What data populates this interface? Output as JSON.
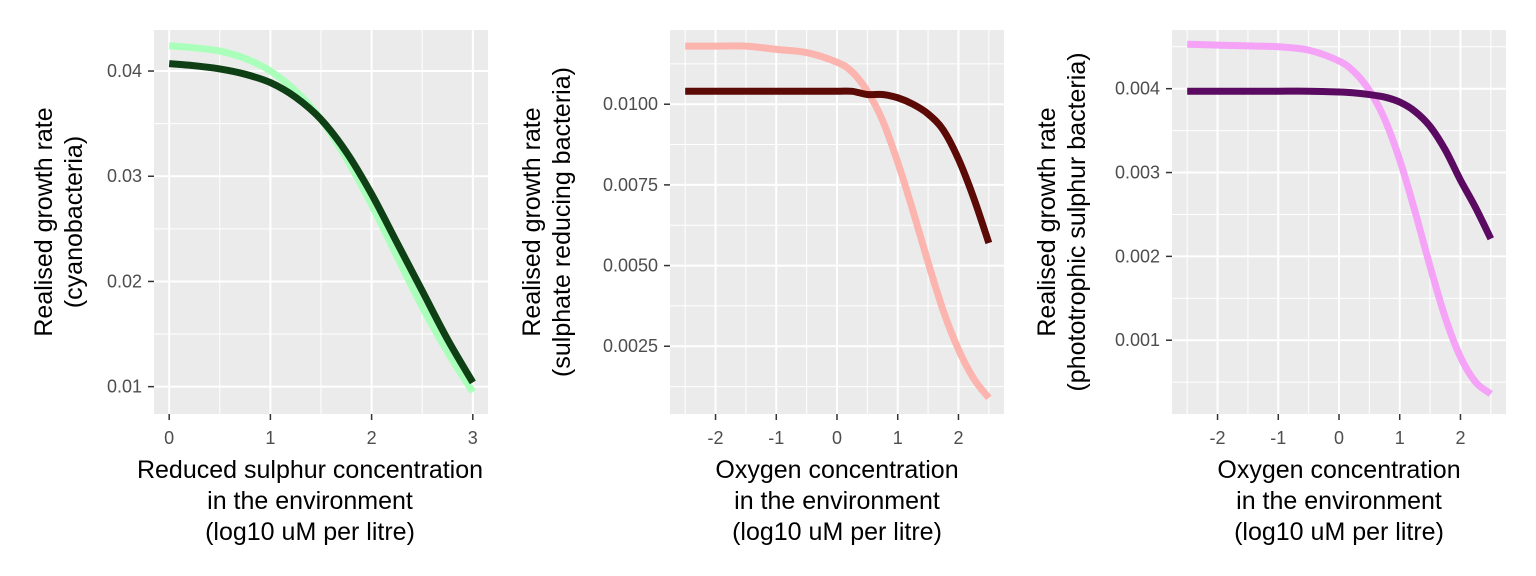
{
  "chart_data": [
    {
      "type": "line",
      "title": "",
      "xlabel": [
        "Reduced sulphur concentration",
        "in the environment",
        "(log10 uM per litre)"
      ],
      "ylabel": [
        "Realised growth rate",
        "(cyanobacteria)"
      ],
      "xlim": [
        -0.15,
        3.15
      ],
      "ylim": [
        0.0074,
        0.0439
      ],
      "xticks": [
        0,
        1,
        2,
        3
      ],
      "xtick_labels": [
        "0",
        "1",
        "2",
        "3"
      ],
      "yticks": [
        0.01,
        0.02,
        0.03,
        0.04
      ],
      "ytick_labels": [
        "0.01",
        "0.02",
        "0.03",
        "0.04"
      ],
      "grid": true,
      "legend": "none",
      "x": [
        0,
        0.25,
        0.5,
        0.75,
        1.0,
        1.25,
        1.5,
        1.75,
        2.0,
        2.25,
        2.5,
        2.75,
        3.0
      ],
      "series": [
        {
          "color": "#aaffbb",
          "values": [
            0.0424,
            0.0422,
            0.0419,
            0.0412,
            0.04,
            0.0381,
            0.0354,
            0.0317,
            0.0273,
            0.0224,
            0.0176,
            0.0133,
            0.0095
          ]
        },
        {
          "color": "#0f3f14",
          "values": [
            0.0407,
            0.0405,
            0.0402,
            0.0397,
            0.0389,
            0.0375,
            0.0354,
            0.0323,
            0.0283,
            0.0237,
            0.0191,
            0.0145,
            0.0104
          ]
        }
      ]
    },
    {
      "type": "line",
      "title": "",
      "xlabel": [
        "Oxygen concentration",
        "in the environment",
        "(log10 uM per litre)"
      ],
      "ylabel": [
        "Realised growth rate",
        "(sulphate reducing bacteria)"
      ],
      "xlim": [
        -2.75,
        2.75
      ],
      "ylim": [
        0.0004,
        0.0123
      ],
      "xticks": [
        -2,
        -1,
        0,
        1,
        2
      ],
      "xtick_labels": [
        "-2",
        "-1",
        "0",
        "1",
        "2"
      ],
      "yticks": [
        0.0025,
        0.005,
        0.0075,
        0.01
      ],
      "ytick_labels": [
        "0.0025",
        "0.0050",
        "0.0075",
        "0.0100"
      ],
      "grid": true,
      "legend": "none",
      "x": [
        -2.5,
        -2.0,
        -1.5,
        -1.0,
        -0.5,
        0.0,
        0.25,
        0.5,
        0.75,
        1.0,
        1.25,
        1.5,
        1.75,
        2.0,
        2.25,
        2.5
      ],
      "series": [
        {
          "color": "#fbb4ae",
          "values": [
            0.0118,
            0.0118,
            0.0118,
            0.0117,
            0.0116,
            0.0113,
            0.011,
            0.0104,
            0.0095,
            0.0082,
            0.0067,
            0.0051,
            0.0036,
            0.0024,
            0.0015,
            0.0009
          ]
        },
        {
          "color": "#5c0a05",
          "values": [
            0.0104,
            0.0104,
            0.0104,
            0.0104,
            0.0104,
            0.0104,
            0.0104,
            0.0103,
            0.0103,
            0.0102,
            0.01,
            0.0097,
            0.0092,
            0.0083,
            0.0071,
            0.0057
          ]
        }
      ]
    },
    {
      "type": "line",
      "title": "",
      "xlabel": [
        "Oxygen concentration",
        "in the environment",
        "(log10 uM per litre)"
      ],
      "ylabel": [
        "Realised growth rate",
        "(phototrophic sulphur bacteria)"
      ],
      "xlim": [
        -2.75,
        2.75
      ],
      "ylim": [
        0.00012,
        0.0047
      ],
      "xticks": [
        -2,
        -1,
        0,
        1,
        2
      ],
      "xtick_labels": [
        "-2",
        "-1",
        "0",
        "1",
        "2"
      ],
      "yticks": [
        0.001,
        0.002,
        0.003,
        0.004
      ],
      "ytick_labels": [
        "0.001",
        "0.002",
        "0.003",
        "0.004"
      ],
      "grid": true,
      "legend": "none",
      "x": [
        -2.5,
        -2.0,
        -1.5,
        -1.0,
        -0.5,
        0.0,
        0.25,
        0.5,
        0.75,
        1.0,
        1.25,
        1.5,
        1.75,
        2.0,
        2.25,
        2.5
      ],
      "series": [
        {
          "color": "#f4a3f7",
          "values": [
            0.00453,
            0.00452,
            0.00451,
            0.0045,
            0.00446,
            0.00433,
            0.0042,
            0.00398,
            0.00364,
            0.00315,
            0.00254,
            0.00188,
            0.00127,
            0.0008,
            0.0005,
            0.00036
          ]
        },
        {
          "color": "#5b0a61",
          "values": [
            0.00397,
            0.00397,
            0.00397,
            0.00397,
            0.00397,
            0.00396,
            0.00395,
            0.00393,
            0.0039,
            0.00384,
            0.00373,
            0.00355,
            0.00327,
            0.00291,
            0.00258,
            0.00221
          ]
        }
      ]
    }
  ]
}
